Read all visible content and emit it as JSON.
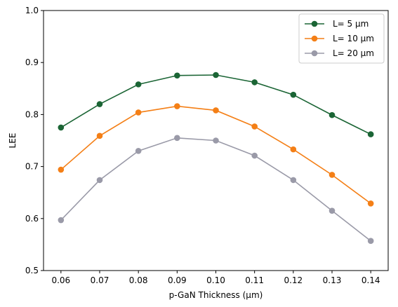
{
  "chart_data": {
    "type": "line",
    "xlabel": "p-GaN Thickness (µm)",
    "ylabel": "LEE",
    "x": [
      0.06,
      0.07,
      0.08,
      0.09,
      0.1,
      0.11,
      0.12,
      0.13,
      0.14
    ],
    "x_ticks": [
      "0.06",
      "0.07",
      "0.08",
      "0.09",
      "0.10",
      "0.11",
      "0.12",
      "0.13",
      "0.14"
    ],
    "y_ticks": [
      "0.5",
      "0.6",
      "0.7",
      "0.8",
      "0.9",
      "1.0"
    ],
    "xlim": [
      0.0555,
      0.1445
    ],
    "ylim": [
      0.5,
      1.0
    ],
    "grid": false,
    "legend_position": "top-right",
    "series": [
      {
        "name": "L= 5 µm",
        "color": "#1b6535",
        "values": [
          0.775,
          0.82,
          0.858,
          0.875,
          0.876,
          0.862,
          0.838,
          0.799,
          0.762
        ]
      },
      {
        "name": "L= 10 µm",
        "color": "#f47f16",
        "values": [
          0.694,
          0.759,
          0.804,
          0.816,
          0.808,
          0.777,
          0.733,
          0.684,
          0.629
        ]
      },
      {
        "name": "L= 20 µm",
        "color": "#9a9aa8",
        "values": [
          0.597,
          0.674,
          0.73,
          0.755,
          0.75,
          0.721,
          0.674,
          0.615,
          0.557
        ]
      }
    ]
  }
}
